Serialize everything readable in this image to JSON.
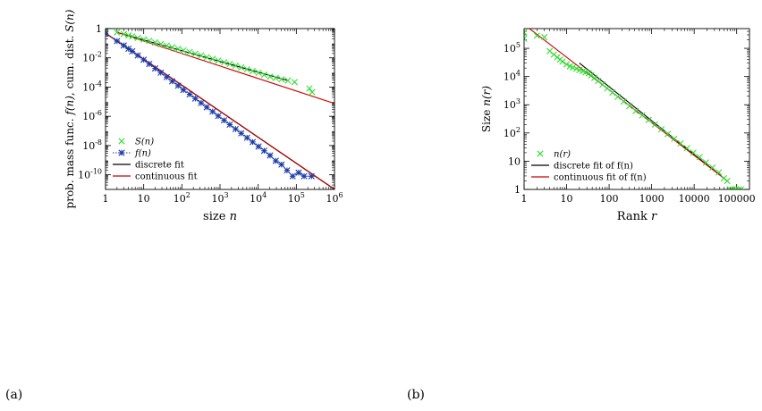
{
  "panels": {
    "a_label": "(a)",
    "b_label": "(b)"
  },
  "chart_data": [
    {
      "panel": "(a)",
      "type": "scatter",
      "xlabel_text": "size",
      "xlabel_var": "n",
      "ylabel_text": "prob. mass func.",
      "ylabel_mid": ", cum. dist.",
      "ylabel_f": "f(n)",
      "ylabel_s": "S(n)",
      "xscale": "log",
      "yscale": "log",
      "xlim": [
        1,
        1000000
      ],
      "ylim": [
        1e-11,
        1
      ],
      "xticks": [
        {
          "v": 1,
          "base": "1",
          "exp": ""
        },
        {
          "v": 10,
          "base": "10",
          "exp": ""
        },
        {
          "v": 100,
          "base": "10",
          "exp": "2"
        },
        {
          "v": 1000,
          "base": "10",
          "exp": "3"
        },
        {
          "v": 10000,
          "base": "10",
          "exp": "4"
        },
        {
          "v": 100000,
          "base": "10",
          "exp": "5"
        },
        {
          "v": 1000000,
          "base": "10",
          "exp": "6"
        }
      ],
      "yticks": [
        {
          "v": 1,
          "base": "1",
          "exp": ""
        },
        {
          "v": 0.01,
          "base": "10",
          "exp": "-2"
        },
        {
          "v": 0.0001,
          "base": "10",
          "exp": "-4"
        },
        {
          "v": 1e-06,
          "base": "10",
          "exp": "-6"
        },
        {
          "v": 1e-08,
          "base": "10",
          "exp": "-8"
        },
        {
          "v": 1e-10,
          "base": "10",
          "exp": "-10"
        }
      ],
      "legend_position": "bottom-left",
      "legend": [
        {
          "label": "S(n)",
          "kind": "x-marker",
          "color": "#33dd33"
        },
        {
          "label": "f(n)",
          "kind": "star-dotted",
          "color": "#1a3aa8"
        },
        {
          "label": "discrete fit",
          "kind": "line",
          "color": "#000000"
        },
        {
          "label": "continuous fit",
          "kind": "line",
          "color": "#cc0000"
        }
      ],
      "series": [
        {
          "name": "S(n)",
          "kind": "x-marker",
          "color": "#33dd33",
          "x": [
            1,
            2,
            3,
            4,
            5,
            7,
            10,
            14,
            20,
            28,
            40,
            56,
            80,
            110,
            160,
            225,
            320,
            450,
            640,
            900,
            1280,
            1800,
            2560,
            3600,
            5120,
            7200,
            10240,
            14400,
            20480,
            28800,
            40960,
            60000,
            90000,
            220000,
            260000
          ],
          "y": [
            1,
            0.55,
            0.42,
            0.34,
            0.29,
            0.23,
            0.18,
            0.145,
            0.112,
            0.088,
            0.068,
            0.053,
            0.041,
            0.032,
            0.025,
            0.019,
            0.0145,
            0.011,
            0.0085,
            0.0065,
            0.005,
            0.0038,
            0.0029,
            0.0022,
            0.00165,
            0.00125,
            0.00095,
            0.0007,
            0.00052,
            0.00042,
            0.00034,
            0.00028,
            0.00022,
            8e-05,
            4.5e-05
          ]
        },
        {
          "name": "f(n)",
          "kind": "star-dotted",
          "color": "#1a3aa8",
          "x": [
            1,
            2,
            3,
            4,
            5,
            7,
            10,
            14,
            20,
            28,
            40,
            56,
            80,
            110,
            160,
            225,
            320,
            450,
            640,
            900,
            1280,
            1800,
            2560,
            3600,
            5120,
            7200,
            10240,
            14400,
            20480,
            28800,
            40960,
            57000,
            80000,
            115000,
            160000,
            250000
          ],
          "y": [
            0.45,
            0.14,
            0.07,
            0.042,
            0.028,
            0.0145,
            0.0074,
            0.0038,
            0.00188,
            0.00097,
            0.00048,
            0.00025,
            0.000125,
            6.4e-05,
            3.2e-05,
            1.65e-05,
            8.2e-06,
            4.2e-06,
            2.1e-06,
            1.06e-06,
            5.3e-07,
            2.7e-07,
            1.35e-07,
            6.9e-08,
            3.4e-08,
            1.75e-08,
            8.6e-09,
            4.4e-09,
            2.1e-09,
            9e-10,
            5e-10,
            2e-10,
            8e-11,
            1.4e-10,
            8e-11,
            8e-11
          ]
        },
        {
          "name": "discrete fit",
          "kind": "line",
          "color": "#000000",
          "x": [
            1,
            1000000
          ],
          "y": [
            0.48,
            1e-11
          ]
        },
        {
          "name": "continuous fit",
          "kind": "line",
          "color": "#cc0000",
          "x": [
            1,
            1000000
          ],
          "y": [
            0.5,
            1.05e-11
          ]
        },
        {
          "name": "discrete fit S",
          "kind": "line",
          "color": "#000000",
          "x": [
            2,
            60000
          ],
          "y": [
            0.55,
            0.00028
          ]
        },
        {
          "name": "continuous fit S",
          "kind": "line",
          "color": "#cc0000",
          "x": [
            2,
            1000000
          ],
          "y": [
            0.56,
            7.5e-06
          ]
        }
      ]
    },
    {
      "panel": "(b)",
      "type": "scatter",
      "xlabel_text": "Rank",
      "xlabel_var": "r",
      "ylabel_text": "Size",
      "ylabel_var": "n(r)",
      "xscale": "log",
      "yscale": "log",
      "xlim": [
        1,
        200000
      ],
      "ylim": [
        1,
        500000
      ],
      "xticks": [
        {
          "v": 1,
          "base": "1",
          "exp": ""
        },
        {
          "v": 10,
          "base": "10",
          "exp": ""
        },
        {
          "v": 100,
          "base": "100",
          "exp": ""
        },
        {
          "v": 1000,
          "base": "1000",
          "exp": ""
        },
        {
          "v": 10000,
          "base": "10000",
          "exp": ""
        },
        {
          "v": 100000,
          "base": "100000",
          "exp": ""
        }
      ],
      "yticks": [
        {
          "v": 1,
          "base": "1",
          "exp": ""
        },
        {
          "v": 10,
          "base": "10",
          "exp": ""
        },
        {
          "v": 100,
          "base": "10",
          "exp": "2"
        },
        {
          "v": 1000,
          "base": "10",
          "exp": "3"
        },
        {
          "v": 10000,
          "base": "10",
          "exp": "4"
        },
        {
          "v": 100000,
          "base": "10",
          "exp": "5"
        }
      ],
      "legend_position": "bottom-left",
      "legend": [
        {
          "label": "n(r)",
          "kind": "x-marker",
          "color": "#33dd33"
        },
        {
          "label": "discrete fit of f(n)",
          "kind": "line",
          "color": "#000000"
        },
        {
          "label": "continuous fit of f(n)",
          "kind": "line",
          "color": "#cc0000"
        }
      ],
      "series": [
        {
          "name": "n(r)",
          "kind": "x-marker",
          "color": "#33dd33",
          "x": [
            1,
            1,
            2,
            3,
            4,
            5,
            6,
            7,
            8,
            10,
            12,
            14,
            17,
            20,
            24,
            28,
            33,
            38,
            45,
            55,
            70,
            90,
            120,
            160,
            220,
            300,
            420,
            600,
            850,
            1200,
            1700,
            2400,
            3400,
            4800,
            6800,
            9600,
            13500,
            19000,
            27000,
            38000,
            50000,
            60000,
            70000,
            80000,
            95000,
            110000,
            125000
          ],
          "y": [
            370000,
            220000,
            280000,
            250000,
            80000,
            60000,
            48000,
            40000,
            34000,
            27000,
            23000,
            21000,
            19000,
            17000,
            15500,
            14000,
            13000,
            11000,
            9000,
            7000,
            5200,
            3800,
            2700,
            1900,
            1300,
            900,
            600,
            420,
            290,
            200,
            135,
            92,
            63,
            43,
            29,
            20,
            14,
            9,
            6,
            4,
            2.5,
            2,
            1,
            1,
            1,
            1,
            1
          ]
        },
        {
          "name": "discrete fit of f(n)",
          "kind": "line",
          "color": "#000000",
          "x": [
            20,
            60000
          ],
          "y": [
            30000,
            2
          ]
        },
        {
          "name": "continuous fit of f(n)",
          "kind": "line",
          "color": "#cc0000",
          "x": [
            1,
            60000
          ],
          "y": [
            700000,
            2
          ]
        }
      ]
    }
  ]
}
